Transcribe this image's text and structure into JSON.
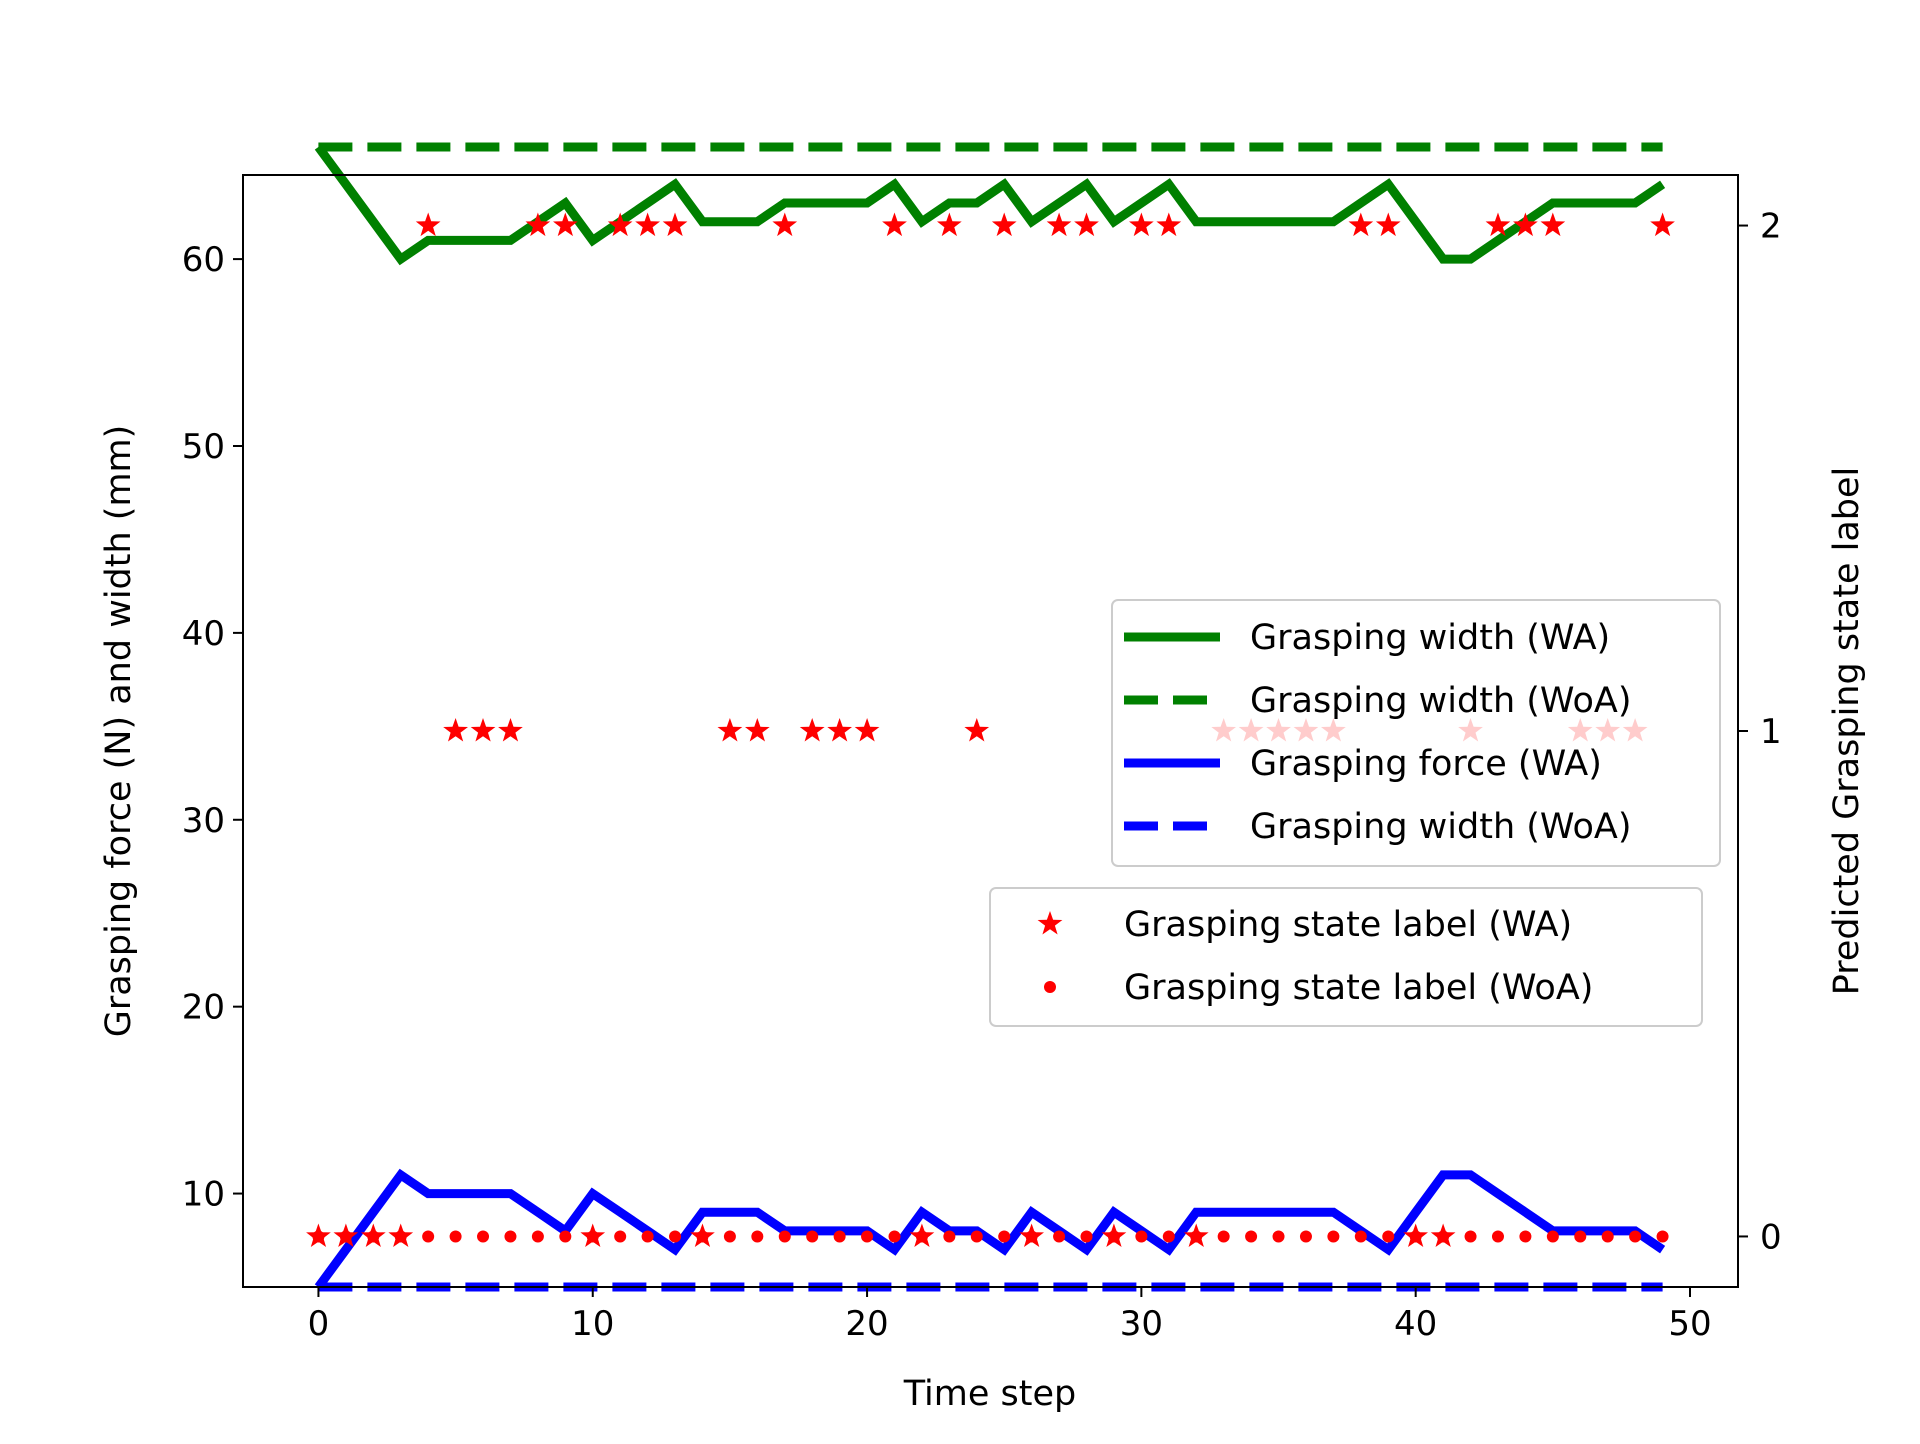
{
  "chart_data": {
    "type": "line",
    "xlabel": "Time step",
    "ylabel": "Grasping force (N) and width (mm)",
    "y2label": "Predicted Grasping state label",
    "xlim": [
      -2.75,
      51.75
    ],
    "ylim": [
      5.0,
      64.5
    ],
    "y2lim": [
      -0.1,
      2.1
    ],
    "x_ticks": [
      0,
      10,
      20,
      30,
      40,
      50
    ],
    "y_ticks": [
      10,
      20,
      30,
      40,
      50,
      60
    ],
    "y2_ticks": [
      0,
      1,
      2
    ],
    "x": [
      0,
      1,
      2,
      3,
      4,
      5,
      6,
      7,
      8,
      9,
      10,
      11,
      12,
      13,
      14,
      15,
      16,
      17,
      18,
      19,
      20,
      21,
      22,
      23,
      24,
      25,
      26,
      27,
      28,
      29,
      30,
      31,
      32,
      33,
      34,
      35,
      36,
      37,
      38,
      39,
      40,
      41,
      42,
      43,
      44,
      45,
      46,
      47,
      48,
      49
    ],
    "series": [
      {
        "name": "Grasping width (WA)",
        "axis": "left",
        "style": "solid",
        "color": "#008000",
        "values": [
          66,
          64,
          62,
          60,
          61,
          61,
          61,
          61,
          62,
          63,
          61,
          62,
          63,
          64,
          62,
          62,
          62,
          63,
          63,
          63,
          63,
          64,
          62,
          63,
          63,
          64,
          62,
          63,
          64,
          62,
          63,
          64,
          62,
          62,
          62,
          62,
          62,
          62,
          63,
          64,
          62,
          60,
          60,
          61,
          62,
          63,
          63,
          63,
          63,
          64
        ]
      },
      {
        "name": "Grasping width (WoA)",
        "axis": "left",
        "style": "dashed",
        "color": "#008000",
        "values": [
          66,
          66,
          66,
          66,
          66,
          66,
          66,
          66,
          66,
          66,
          66,
          66,
          66,
          66,
          66,
          66,
          66,
          66,
          66,
          66,
          66,
          66,
          66,
          66,
          66,
          66,
          66,
          66,
          66,
          66,
          66,
          66,
          66,
          66,
          66,
          66,
          66,
          66,
          66,
          66,
          66,
          66,
          66,
          66,
          66,
          66,
          66,
          66,
          66,
          66
        ]
      },
      {
        "name": "Grasping force (WA)",
        "axis": "left",
        "style": "solid",
        "color": "#0000ff",
        "values": [
          5,
          7,
          9,
          11,
          10,
          10,
          10,
          10,
          9,
          8,
          10,
          9,
          8,
          7,
          9,
          9,
          9,
          8,
          8,
          8,
          8,
          7,
          9,
          8,
          8,
          7,
          9,
          8,
          7,
          9,
          8,
          7,
          9,
          9,
          9,
          9,
          9,
          9,
          8,
          7,
          9,
          11,
          11,
          10,
          9,
          8,
          8,
          8,
          8,
          7
        ]
      },
      {
        "name": "Grasping width (WoA)",
        "axis": "left",
        "style": "dashed",
        "color": "#0000ff",
        "values": [
          5,
          5,
          5,
          5,
          5,
          5,
          5,
          5,
          5,
          5,
          5,
          5,
          5,
          5,
          5,
          5,
          5,
          5,
          5,
          5,
          5,
          5,
          5,
          5,
          5,
          5,
          5,
          5,
          5,
          5,
          5,
          5,
          5,
          5,
          5,
          5,
          5,
          5,
          5,
          5,
          5,
          5,
          5,
          5,
          5,
          5,
          5,
          5,
          5,
          5
        ]
      },
      {
        "name": "Grasping state label (WA)",
        "axis": "right",
        "style": "star",
        "color": "#ff0000",
        "values": [
          0,
          0,
          0,
          0,
          2,
          1,
          1,
          1,
          2,
          2,
          0,
          2,
          2,
          2,
          0,
          1,
          1,
          2,
          1,
          1,
          1,
          2,
          0,
          2,
          1,
          2,
          0,
          2,
          2,
          0,
          2,
          2,
          0,
          1,
          1,
          1,
          1,
          1,
          2,
          2,
          0,
          0,
          1,
          2,
          2,
          2,
          1,
          1,
          1,
          2
        ]
      },
      {
        "name": "Grasping state label (WoA)",
        "axis": "right",
        "style": "dot",
        "color": "#ff0000",
        "values": [
          0,
          0,
          0,
          0,
          0,
          0,
          0,
          0,
          0,
          0,
          0,
          0,
          0,
          0,
          0,
          0,
          0,
          0,
          0,
          0,
          0,
          0,
          0,
          0,
          0,
          0,
          0,
          0,
          0,
          0,
          0,
          0,
          0,
          0,
          0,
          0,
          0,
          0,
          0,
          0,
          0,
          0,
          0,
          0,
          0,
          0,
          0,
          0,
          0,
          0
        ]
      }
    ],
    "legends": [
      {
        "placement": "center-right",
        "entries": [
          "Grasping width (WA)",
          "Grasping width (WoA)",
          "Grasping force (WA)",
          "Grasping width (WoA)"
        ]
      },
      {
        "placement": "lower-right",
        "entries": [
          "Grasping state label (WA)",
          "Grasping state label (WoA)"
        ]
      }
    ],
    "grid": false
  }
}
